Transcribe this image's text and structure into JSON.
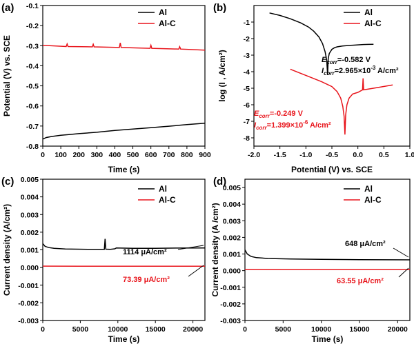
{
  "colors": {
    "al": "#000000",
    "alc": "#e8141b"
  },
  "chart_data": [
    {
      "id": "a",
      "type": "line",
      "panel_label": "(a)",
      "xlabel": "Time (s)",
      "ylabel": "Potential (V) vs. SCE",
      "xlim": [
        0,
        900
      ],
      "ylim": [
        -0.8,
        -0.1
      ],
      "xticks": [
        0,
        100,
        200,
        300,
        400,
        500,
        600,
        700,
        800,
        900
      ],
      "yticks": [
        -0.8,
        -0.7,
        -0.6,
        -0.5,
        -0.4,
        -0.3,
        -0.2,
        -0.1
      ],
      "ytick_labels": [
        "-0.8",
        "-0.7",
        "-0.6",
        "-0.5",
        "-0.4",
        "-0.3",
        "-0.2",
        "-0.1"
      ],
      "legend": [
        "Al",
        "Al-C"
      ],
      "series": [
        {
          "name": "Al",
          "color": "#000000",
          "x": [
            0,
            20,
            50,
            100,
            150,
            200,
            300,
            400,
            500,
            600,
            700,
            800,
            900
          ],
          "y": [
            -0.765,
            -0.757,
            -0.752,
            -0.746,
            -0.742,
            -0.738,
            -0.731,
            -0.722,
            -0.715,
            -0.708,
            -0.701,
            -0.693,
            -0.686
          ]
        },
        {
          "name": "Al-C",
          "color": "#e8141b",
          "x": [
            0,
            130,
            135,
            140,
            275,
            280,
            285,
            425,
            430,
            435,
            595,
            600,
            605,
            755,
            760,
            765,
            900
          ],
          "y": [
            -0.298,
            -0.304,
            -0.291,
            -0.304,
            -0.306,
            -0.293,
            -0.306,
            -0.309,
            -0.286,
            -0.309,
            -0.313,
            -0.298,
            -0.313,
            -0.317,
            -0.305,
            -0.317,
            -0.322
          ]
        }
      ]
    },
    {
      "id": "b",
      "type": "line",
      "panel_label": "(b)",
      "xlabel": "Potential (V) vs. SCE",
      "ylabel": "log (I , A/cm²)",
      "xlim": [
        -2.0,
        1.0
      ],
      "ylim": [
        -8.5,
        0.0
      ],
      "xticks": [
        -2.0,
        -1.5,
        -1.0,
        -0.5,
        0.0,
        0.5,
        1.0
      ],
      "xtick_labels": [
        "-2.0",
        "-1.5",
        "-1.0",
        "-0.5",
        "0.0",
        "0.5",
        "1.0"
      ],
      "yticks": [
        -8,
        -7,
        -6,
        -5,
        -4,
        -3,
        -2,
        -1
      ],
      "ytick_labels": [
        "-8",
        "-7",
        "-6",
        "-5",
        "-4",
        "-3",
        "-2",
        "-1"
      ],
      "legend": [
        "Al",
        "Al-C"
      ],
      "series": [
        {
          "name": "Al",
          "color": "#000000",
          "x": [
            -1.7,
            -1.5,
            -1.3,
            -1.1,
            -0.95,
            -0.85,
            -0.75,
            -0.68,
            -0.63,
            -0.6,
            -0.582,
            -0.57,
            -0.55,
            -0.5,
            -0.45,
            -0.4,
            -0.3,
            -0.2,
            -0.1,
            0.0,
            0.1,
            0.2,
            0.3
          ],
          "y": [
            -0.45,
            -0.6,
            -0.8,
            -1.05,
            -1.3,
            -1.55,
            -1.9,
            -2.3,
            -2.8,
            -3.3,
            -4.2,
            -3.2,
            -2.9,
            -2.65,
            -2.55,
            -2.5,
            -2.45,
            -2.42,
            -2.4,
            -2.38,
            -2.36,
            -2.35,
            -2.34
          ]
        },
        {
          "name": "Al-C",
          "color": "#e8141b",
          "x": [
            -1.3,
            -1.1,
            -0.9,
            -0.7,
            -0.5,
            -0.4,
            -0.33,
            -0.29,
            -0.265,
            -0.249,
            -0.235,
            -0.21,
            -0.17,
            -0.1,
            0.0,
            0.09,
            0.1,
            0.11,
            0.2,
            0.4,
            0.67
          ],
          "y": [
            -3.85,
            -4.1,
            -4.35,
            -4.6,
            -4.9,
            -5.2,
            -5.6,
            -6.1,
            -6.7,
            -7.8,
            -6.6,
            -6.0,
            -5.6,
            -5.35,
            -5.25,
            -5.1,
            -4.4,
            -5.1,
            -5.05,
            -4.95,
            -4.8
          ]
        }
      ],
      "annotations": {
        "al_ecorr": {
          "label": "E",
          "sub": "corr",
          "value": "=-0.582 V"
        },
        "al_icorr": {
          "label": "I",
          "sub": "corr",
          "value": "=2.965×10",
          "sup": "-3",
          "unit": " A/cm²"
        },
        "alc_ecorr": {
          "label": "E",
          "sub": "corr",
          "value": "=-0.249 V"
        },
        "alc_icorr": {
          "label": "I",
          "sub": "corr",
          "value": "=1.399×10",
          "sup": "-6",
          "unit": " A/cm²"
        }
      }
    },
    {
      "id": "c",
      "type": "line",
      "panel_label": "(c)",
      "xlabel": "Time (s)",
      "ylabel": "Current density (A/cm²)",
      "xlim": [
        0,
        21600
      ],
      "ylim": [
        -0.003,
        0.005
      ],
      "xticks": [
        0,
        5000,
        10000,
        15000,
        20000
      ],
      "xtick_labels": [
        "0",
        "5000",
        "10000",
        "15000",
        "20000"
      ],
      "yticks": [
        -0.003,
        -0.002,
        -0.001,
        0.0,
        0.001,
        0.002,
        0.003,
        0.004,
        0.005
      ],
      "ytick_labels": [
        "-0.003",
        "-0.002",
        "-0.001",
        "0.000",
        "0.001",
        "0.002",
        "0.003",
        "0.004",
        "0.005"
      ],
      "legend": [
        "Al",
        "Al-C"
      ],
      "series": [
        {
          "name": "Al",
          "color": "#000000",
          "x": [
            0,
            300,
            800,
            1500,
            3000,
            6000,
            8200,
            8300,
            8400,
            9000,
            9600,
            9800,
            12000,
            15000,
            18000,
            21600
          ],
          "y": [
            0.00135,
            0.0012,
            0.00113,
            0.00109,
            0.00105,
            0.00103,
            0.00103,
            0.00162,
            0.00104,
            0.00103,
            0.00106,
            0.00111,
            0.00109,
            0.00109,
            0.0011,
            0.00111
          ]
        },
        {
          "name": "Al-C",
          "color": "#e8141b",
          "x": [
            0,
            5000,
            10000,
            15000,
            21600
          ],
          "y": [
            8e-05,
            7e-05,
            7e-05,
            7e-05,
            7e-05
          ]
        }
      ],
      "annotations": {
        "al_value": "1114 μA/cm²",
        "alc_value": "73.39 μA/cm²"
      }
    },
    {
      "id": "d",
      "type": "line",
      "panel_label": "(d)",
      "xlabel": "Time (s)",
      "ylabel": "Current density (A /cm²)",
      "xlim": [
        0,
        21600
      ],
      "ylim": [
        -0.003,
        0.0055
      ],
      "xticks": [
        0,
        5000,
        10000,
        15000,
        20000
      ],
      "xtick_labels": [
        "0",
        "5000",
        "10000",
        "15000",
        "20000"
      ],
      "yticks": [
        -0.003,
        -0.002,
        -0.001,
        0.0,
        0.001,
        0.002,
        0.003,
        0.004,
        0.005
      ],
      "ytick_labels": [
        "-0.003",
        "-0.002",
        "-0.001",
        "0.000",
        "0.001",
        "0.002",
        "0.003",
        "0.004",
        "0.005"
      ],
      "legend": [
        "Al",
        "Al-C"
      ],
      "series": [
        {
          "name": "Al",
          "color": "#000000",
          "x": [
            0,
            300,
            800,
            1500,
            3000,
            6000,
            10000,
            15000,
            21600
          ],
          "y": [
            0.00125,
            0.001,
            0.00085,
            0.00078,
            0.00073,
            0.0007,
            0.00068,
            0.00066,
            0.00065
          ]
        },
        {
          "name": "Al-C",
          "color": "#e8141b",
          "x": [
            0,
            5000,
            10000,
            15000,
            21600
          ],
          "y": [
            7e-05,
            6e-05,
            6e-05,
            6e-05,
            6e-05
          ]
        }
      ],
      "annotations": {
        "al_value": "648 μA/cm²",
        "alc_value": "63.55 μA/cm²"
      }
    }
  ]
}
